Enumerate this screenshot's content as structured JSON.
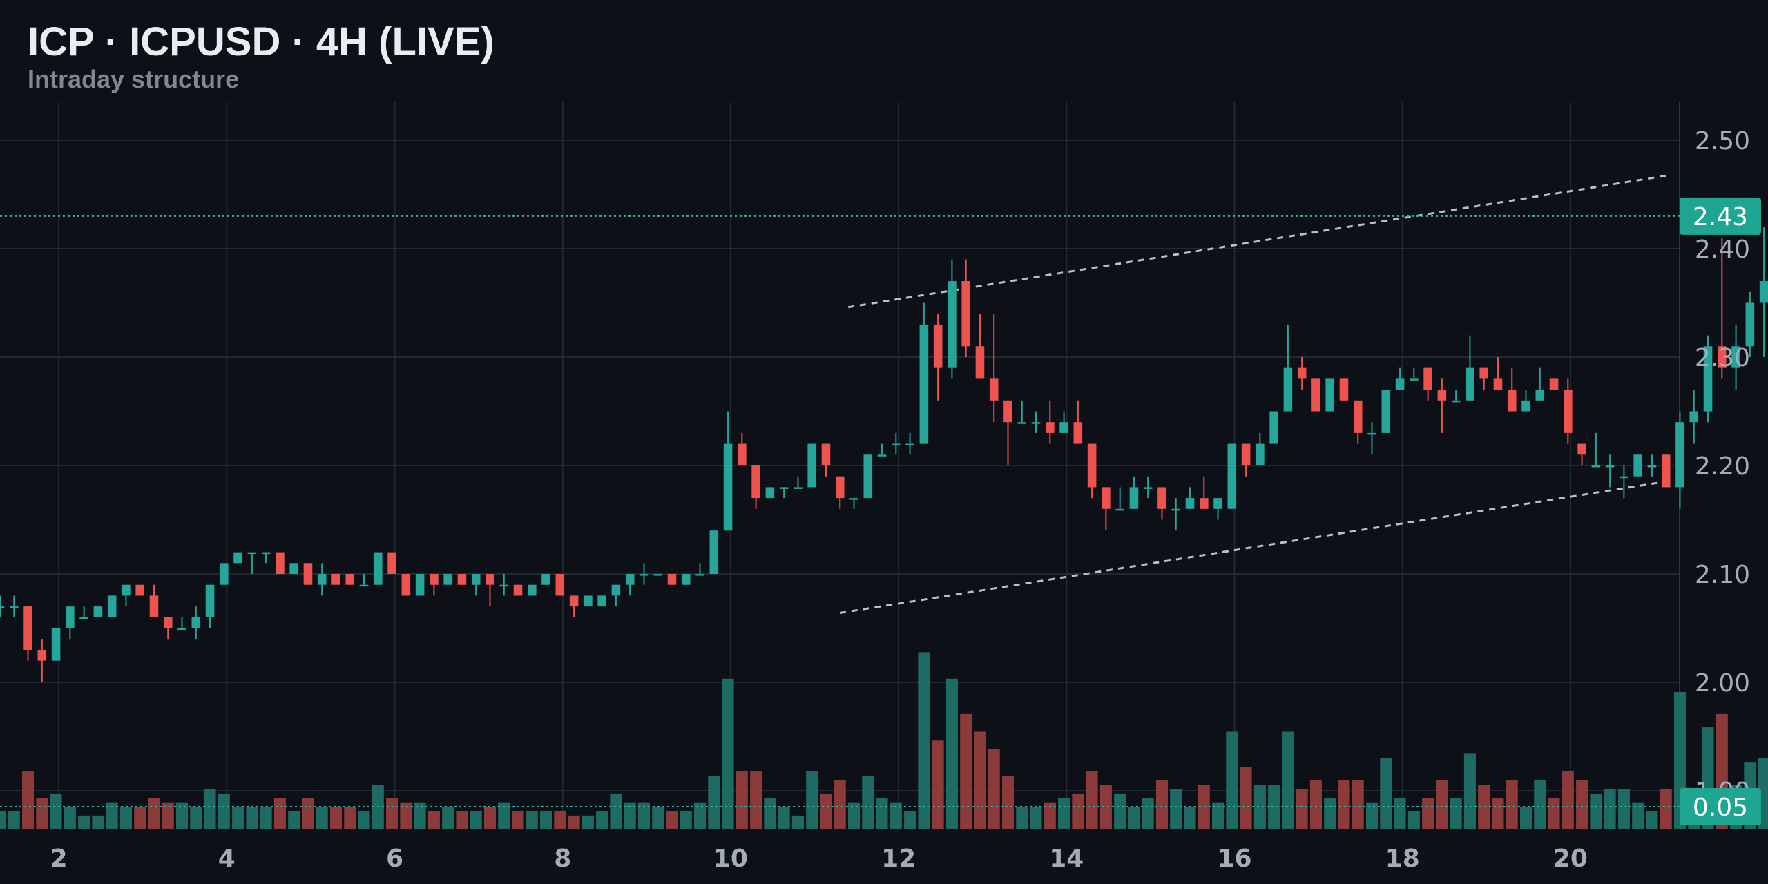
{
  "header": {
    "title": "ICP · ICPUSD · 4H (LIVE)",
    "subtitle": "Intraday structure"
  },
  "colors": {
    "background": "#0d1017",
    "grid": "#1f2a33",
    "up": "#26a69a",
    "down": "#ef5350",
    "up_volume": "#1e6b64",
    "down_volume": "#8c3a3a",
    "channel": "#b9c0c7",
    "price_line": "#2fb5a8",
    "badge": "#1fa693"
  },
  "chart_data": {
    "type": "candlestick",
    "symbol": "ICPUSD",
    "interval": "4H",
    "x_start": 1.3,
    "x_step": 0.1667,
    "xlim": [
      1.3,
      21.3
    ],
    "x_ticks": [
      2,
      4,
      6,
      8,
      10,
      12,
      14,
      16,
      18,
      20
    ],
    "ylim": [
      1.865,
      2.535
    ],
    "y_ticks": [
      1.9,
      2.0,
      2.1,
      2.2,
      2.3,
      2.4,
      2.5
    ],
    "last_price": 2.43,
    "last_price_label": "2.43",
    "last_volume": 0.05,
    "last_volume_label": "0.05",
    "volume_ylim": [
      0,
      0.36
    ],
    "candles": [
      [
        2.07,
        2.08,
        2.06,
        2.07,
        0.04
      ],
      [
        2.07,
        2.08,
        2.06,
        2.07,
        0.04
      ],
      [
        2.07,
        2.07,
        2.02,
        2.03,
        0.13
      ],
      [
        2.03,
        2.04,
        2.0,
        2.02,
        0.07
      ],
      [
        2.02,
        2.05,
        2.02,
        2.05,
        0.08
      ],
      [
        2.05,
        2.07,
        2.04,
        2.07,
        0.05
      ],
      [
        2.06,
        2.07,
        2.06,
        2.06,
        0.03
      ],
      [
        2.06,
        2.07,
        2.06,
        2.07,
        0.03
      ],
      [
        2.06,
        2.08,
        2.06,
        2.08,
        0.06
      ],
      [
        2.08,
        2.09,
        2.07,
        2.09,
        0.05
      ],
      [
        2.09,
        2.09,
        2.08,
        2.08,
        0.05
      ],
      [
        2.08,
        2.09,
        2.06,
        2.06,
        0.07
      ],
      [
        2.06,
        2.06,
        2.04,
        2.05,
        0.06
      ],
      [
        2.05,
        2.06,
        2.05,
        2.05,
        0.06
      ],
      [
        2.05,
        2.07,
        2.04,
        2.06,
        0.05
      ],
      [
        2.06,
        2.09,
        2.05,
        2.09,
        0.09
      ],
      [
        2.09,
        2.11,
        2.09,
        2.11,
        0.08
      ],
      [
        2.11,
        2.12,
        2.11,
        2.12,
        0.05
      ],
      [
        2.12,
        2.12,
        2.1,
        2.12,
        0.05
      ],
      [
        2.12,
        2.12,
        2.11,
        2.12,
        0.05
      ],
      [
        2.12,
        2.12,
        2.1,
        2.1,
        0.07
      ],
      [
        2.1,
        2.11,
        2.1,
        2.11,
        0.04
      ],
      [
        2.11,
        2.11,
        2.09,
        2.09,
        0.07
      ],
      [
        2.09,
        2.11,
        2.08,
        2.1,
        0.05
      ],
      [
        2.1,
        2.1,
        2.09,
        2.09,
        0.05
      ],
      [
        2.1,
        2.1,
        2.09,
        2.09,
        0.05
      ],
      [
        2.09,
        2.1,
        2.09,
        2.09,
        0.04
      ],
      [
        2.09,
        2.12,
        2.09,
        2.12,
        0.1
      ],
      [
        2.12,
        2.12,
        2.1,
        2.1,
        0.07
      ],
      [
        2.1,
        2.1,
        2.08,
        2.08,
        0.06
      ],
      [
        2.08,
        2.1,
        2.08,
        2.1,
        0.06
      ],
      [
        2.1,
        2.1,
        2.08,
        2.09,
        0.04
      ],
      [
        2.09,
        2.1,
        2.09,
        2.1,
        0.05
      ],
      [
        2.1,
        2.1,
        2.09,
        2.09,
        0.04
      ],
      [
        2.09,
        2.1,
        2.08,
        2.1,
        0.04
      ],
      [
        2.1,
        2.1,
        2.07,
        2.09,
        0.05
      ],
      [
        2.09,
        2.1,
        2.08,
        2.09,
        0.06
      ],
      [
        2.09,
        2.09,
        2.08,
        2.08,
        0.04
      ],
      [
        2.08,
        2.09,
        2.08,
        2.09,
        0.04
      ],
      [
        2.09,
        2.1,
        2.09,
        2.1,
        0.04
      ],
      [
        2.1,
        2.1,
        2.08,
        2.08,
        0.04
      ],
      [
        2.08,
        2.08,
        2.06,
        2.07,
        0.03
      ],
      [
        2.07,
        2.08,
        2.07,
        2.08,
        0.03
      ],
      [
        2.07,
        2.08,
        2.07,
        2.08,
        0.04
      ],
      [
        2.08,
        2.09,
        2.07,
        2.09,
        0.08
      ],
      [
        2.09,
        2.1,
        2.08,
        2.1,
        0.06
      ],
      [
        2.1,
        2.11,
        2.09,
        2.1,
        0.06
      ],
      [
        2.1,
        2.1,
        2.1,
        2.1,
        0.05
      ],
      [
        2.1,
        2.1,
        2.09,
        2.09,
        0.04
      ],
      [
        2.09,
        2.1,
        2.09,
        2.1,
        0.04
      ],
      [
        2.1,
        2.11,
        2.1,
        2.1,
        0.06
      ],
      [
        2.1,
        2.14,
        2.1,
        2.14,
        0.12
      ],
      [
        2.14,
        2.25,
        2.14,
        2.22,
        0.34
      ],
      [
        2.22,
        2.23,
        2.2,
        2.2,
        0.13
      ],
      [
        2.2,
        2.2,
        2.16,
        2.17,
        0.13
      ],
      [
        2.17,
        2.18,
        2.17,
        2.18,
        0.07
      ],
      [
        2.18,
        2.18,
        2.17,
        2.18,
        0.05
      ],
      [
        2.18,
        2.19,
        2.18,
        2.18,
        0.03
      ],
      [
        2.18,
        2.22,
        2.18,
        2.22,
        0.13
      ],
      [
        2.22,
        2.22,
        2.19,
        2.2,
        0.08
      ],
      [
        2.19,
        2.19,
        2.16,
        2.17,
        0.11
      ],
      [
        2.17,
        2.17,
        2.16,
        2.17,
        0.06
      ],
      [
        2.17,
        2.21,
        2.17,
        2.21,
        0.12
      ],
      [
        2.21,
        2.22,
        2.21,
        2.21,
        0.07
      ],
      [
        2.22,
        2.23,
        2.21,
        2.22,
        0.06
      ],
      [
        2.22,
        2.23,
        2.21,
        2.22,
        0.04
      ],
      [
        2.22,
        2.35,
        2.22,
        2.33,
        0.4
      ],
      [
        2.33,
        2.34,
        2.26,
        2.29,
        0.2
      ],
      [
        2.29,
        2.39,
        2.28,
        2.37,
        0.34
      ],
      [
        2.37,
        2.39,
        2.3,
        2.31,
        0.26
      ],
      [
        2.31,
        2.34,
        2.28,
        2.28,
        0.22
      ],
      [
        2.28,
        2.34,
        2.24,
        2.26,
        0.18
      ],
      [
        2.26,
        2.26,
        2.2,
        2.24,
        0.12
      ],
      [
        2.24,
        2.26,
        2.24,
        2.24,
        0.05
      ],
      [
        2.24,
        2.25,
        2.23,
        2.24,
        0.05
      ],
      [
        2.24,
        2.26,
        2.22,
        2.23,
        0.06
      ],
      [
        2.23,
        2.25,
        2.23,
        2.24,
        0.07
      ],
      [
        2.24,
        2.26,
        2.22,
        2.22,
        0.08
      ],
      [
        2.22,
        2.22,
        2.17,
        2.18,
        0.13
      ],
      [
        2.18,
        2.18,
        2.14,
        2.16,
        0.1
      ],
      [
        2.16,
        2.18,
        2.16,
        2.16,
        0.08
      ],
      [
        2.16,
        2.19,
        2.16,
        2.18,
        0.05
      ],
      [
        2.18,
        2.19,
        2.17,
        2.18,
        0.07
      ],
      [
        2.18,
        2.18,
        2.15,
        2.16,
        0.11
      ],
      [
        2.16,
        2.17,
        2.14,
        2.16,
        0.09
      ],
      [
        2.16,
        2.18,
        2.16,
        2.17,
        0.05
      ],
      [
        2.17,
        2.19,
        2.16,
        2.16,
        0.1
      ],
      [
        2.16,
        2.17,
        2.15,
        2.17,
        0.06
      ],
      [
        2.16,
        2.22,
        2.16,
        2.22,
        0.22
      ],
      [
        2.22,
        2.22,
        2.19,
        2.2,
        0.14
      ],
      [
        2.2,
        2.23,
        2.2,
        2.22,
        0.1
      ],
      [
        2.22,
        2.25,
        2.22,
        2.25,
        0.1
      ],
      [
        2.25,
        2.33,
        2.25,
        2.29,
        0.22
      ],
      [
        2.29,
        2.3,
        2.27,
        2.28,
        0.09
      ],
      [
        2.28,
        2.28,
        2.25,
        2.25,
        0.11
      ],
      [
        2.25,
        2.28,
        2.25,
        2.28,
        0.07
      ],
      [
        2.28,
        2.28,
        2.26,
        2.26,
        0.11
      ],
      [
        2.26,
        2.26,
        2.22,
        2.23,
        0.11
      ],
      [
        2.23,
        2.24,
        2.21,
        2.23,
        0.06
      ],
      [
        2.23,
        2.27,
        2.23,
        2.27,
        0.16
      ],
      [
        2.27,
        2.29,
        2.27,
        2.28,
        0.07
      ],
      [
        2.28,
        2.29,
        2.28,
        2.28,
        0.04
      ],
      [
        2.29,
        2.29,
        2.26,
        2.27,
        0.07
      ],
      [
        2.27,
        2.28,
        2.23,
        2.26,
        0.11
      ],
      [
        2.26,
        2.27,
        2.26,
        2.26,
        0.07
      ],
      [
        2.26,
        2.32,
        2.26,
        2.29,
        0.17
      ],
      [
        2.29,
        2.29,
        2.27,
        2.28,
        0.1
      ],
      [
        2.28,
        2.3,
        2.27,
        2.27,
        0.07
      ],
      [
        2.27,
        2.29,
        2.25,
        2.25,
        0.11
      ],
      [
        2.25,
        2.27,
        2.25,
        2.26,
        0.05
      ],
      [
        2.26,
        2.29,
        2.26,
        2.27,
        0.11
      ],
      [
        2.28,
        2.28,
        2.27,
        2.27,
        0.07
      ],
      [
        2.27,
        2.28,
        2.22,
        2.23,
        0.13
      ],
      [
        2.22,
        2.22,
        2.2,
        2.21,
        0.11
      ],
      [
        2.2,
        2.23,
        2.2,
        2.2,
        0.08
      ],
      [
        2.2,
        2.21,
        2.18,
        2.2,
        0.09
      ],
      [
        2.19,
        2.2,
        2.17,
        2.19,
        0.09
      ],
      [
        2.19,
        2.21,
        2.19,
        2.21,
        0.06
      ],
      [
        2.2,
        2.21,
        2.19,
        2.2,
        0.04
      ],
      [
        2.21,
        2.21,
        2.18,
        2.18,
        0.09
      ],
      [
        2.18,
        2.25,
        2.16,
        2.24,
        0.31
      ],
      [
        2.24,
        2.27,
        2.22,
        2.25,
        0.08
      ],
      [
        2.25,
        2.32,
        2.24,
        2.31,
        0.23
      ],
      [
        2.31,
        2.41,
        2.28,
        2.29,
        0.26
      ],
      [
        2.29,
        2.33,
        2.27,
        2.31,
        0.1
      ],
      [
        2.31,
        2.36,
        2.3,
        2.35,
        0.15
      ],
      [
        2.35,
        2.42,
        2.3,
        2.37,
        0.16
      ],
      [
        2.37,
        2.39,
        2.33,
        2.35,
        0.11
      ],
      [
        2.35,
        2.39,
        2.35,
        2.38,
        0.13
      ],
      [
        2.38,
        2.43,
        2.38,
        2.42,
        0.14
      ],
      [
        2.42,
        2.44,
        2.42,
        2.43,
        0.05
      ]
    ],
    "channel": {
      "upper": [
        [
          11.4,
          2.346
        ],
        [
          21.2,
          2.468
        ]
      ],
      "lower": [
        [
          11.3,
          2.064
        ],
        [
          21.2,
          2.186
        ]
      ]
    }
  }
}
